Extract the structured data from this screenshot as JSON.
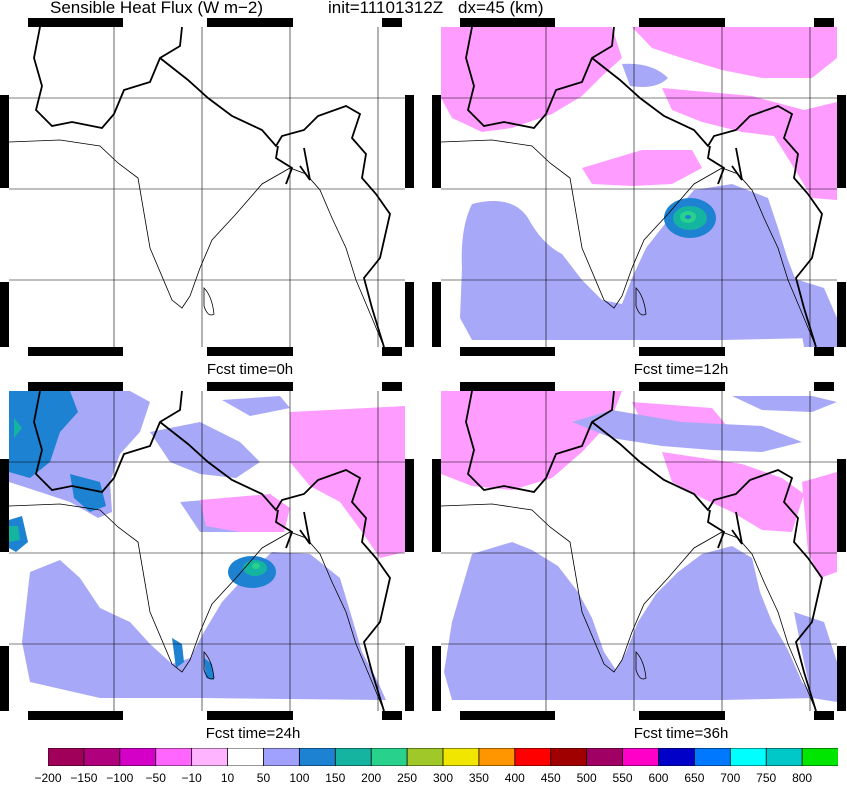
{
  "header": {
    "title": "Sensible Heat Flux (W m−2)",
    "init": "init=11101312Z",
    "dx": "dx=45 (km)"
  },
  "panels": [
    {
      "caption": "Fcst time=0h"
    },
    {
      "caption": "Fcst time=12h"
    },
    {
      "caption": "Fcst time=24h"
    },
    {
      "caption": "Fcst time=36h"
    }
  ],
  "colorbar": {
    "labels": [
      "−200",
      "−150",
      "−100",
      "−50",
      "−10",
      "10",
      "50",
      "100",
      "150",
      "200",
      "250",
      "300",
      "350",
      "400",
      "450",
      "500",
      "550",
      "600",
      "650",
      "700",
      "750",
      "800"
    ],
    "colors": [
      "#a0005a",
      "#b0007d",
      "#d400c8",
      "#ff66ff",
      "#ffb4ff",
      "#ffffff",
      "#a0a0ff",
      "#1e82d2",
      "#14b4a0",
      "#28d28c",
      "#a0c828",
      "#f0e600",
      "#ff9600",
      "#ff0000",
      "#a00000",
      "#a00064",
      "#ff00c8",
      "#0000c8",
      "#0078ff",
      "#00ffff",
      "#00c8c8",
      "#00e600"
    ]
  },
  "palette": {
    "pink": "#ff9cff",
    "lavender": "#a8a8f8",
    "blue": "#1e82d2",
    "teal": "#14b4a0",
    "green": "#28d28c"
  }
}
